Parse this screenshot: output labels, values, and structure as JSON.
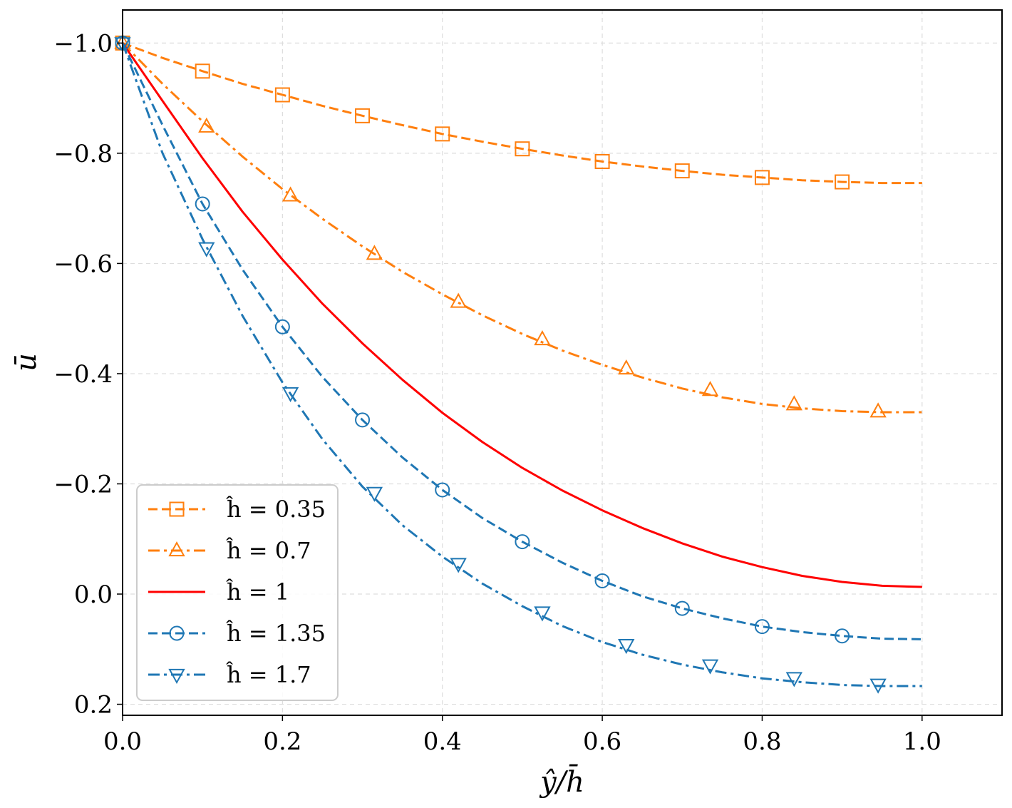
{
  "chart_data": {
    "type": "line",
    "title": "",
    "xlabel": "ŷ/h̄",
    "ylabel": "ū",
    "xlim": [
      0.0,
      1.1
    ],
    "ylim": [
      0.22,
      -1.06
    ],
    "y_inverted": true,
    "grid": true,
    "legend_position": "lower-left",
    "xticks": [
      0.0,
      0.2,
      0.4,
      0.6,
      0.8,
      1.0
    ],
    "xtick_labels": [
      "0.0",
      "0.2",
      "0.4",
      "0.6",
      "0.8",
      "1.0"
    ],
    "yticks": [
      -1.0,
      -0.8,
      -0.6,
      -0.4,
      -0.2,
      0.0,
      0.2
    ],
    "ytick_labels": [
      "−1.0",
      "−0.8",
      "−0.6",
      "−0.4",
      "−0.2",
      "0.0",
      "0.2"
    ],
    "series": [
      {
        "name": "ĥ = 0.35",
        "color": "#ff7f0e",
        "line_style": "dashed",
        "marker": "square",
        "x": [
          0.0,
          0.05,
          0.1,
          0.15,
          0.2,
          0.25,
          0.3,
          0.35,
          0.4,
          0.45,
          0.5,
          0.55,
          0.6,
          0.65,
          0.7,
          0.75,
          0.8,
          0.85,
          0.9,
          0.95,
          1.0
        ],
        "y": [
          -1.0,
          -0.973,
          -0.949,
          -0.926,
          -0.906,
          -0.886,
          -0.868,
          -0.851,
          -0.835,
          -0.821,
          -0.808,
          -0.796,
          -0.785,
          -0.776,
          -0.768,
          -0.761,
          -0.756,
          -0.751,
          -0.748,
          -0.746,
          -0.746
        ],
        "marker_x": [
          0.0,
          0.1,
          0.2,
          0.3,
          0.4,
          0.5,
          0.6,
          0.7,
          0.8,
          0.9
        ],
        "marker_y": [
          -1.0,
          -0.949,
          -0.906,
          -0.868,
          -0.835,
          -0.808,
          -0.785,
          -0.768,
          -0.756,
          -0.748
        ]
      },
      {
        "name": "ĥ = 0.7",
        "color": "#ff7f0e",
        "line_style": "dashdot",
        "marker": "triangle-up",
        "x": [
          0.0,
          0.05,
          0.1,
          0.15,
          0.2,
          0.25,
          0.3,
          0.35,
          0.4,
          0.45,
          0.5,
          0.55,
          0.6,
          0.65,
          0.7,
          0.75,
          0.8,
          0.85,
          0.9,
          0.95,
          1.0
        ],
        "y": [
          -1.0,
          -0.926,
          -0.858,
          -0.794,
          -0.735,
          -0.681,
          -0.631,
          -0.585,
          -0.544,
          -0.506,
          -0.472,
          -0.442,
          -0.416,
          -0.393,
          -0.373,
          -0.357,
          -0.345,
          -0.337,
          -0.332,
          -0.33,
          -0.33
        ],
        "marker_x": [
          0.0,
          0.105,
          0.21,
          0.315,
          0.42,
          0.525,
          0.63,
          0.735,
          0.84,
          0.945
        ],
        "marker_y": [
          -1.0,
          -0.848,
          -0.723,
          -0.617,
          -0.53,
          -0.462,
          -0.409,
          -0.37,
          -0.344,
          -0.331
        ]
      },
      {
        "name": "ĥ = 1",
        "color": "#ff0000",
        "line_style": "solid",
        "marker": "none",
        "x": [
          0.0,
          0.05,
          0.1,
          0.15,
          0.2,
          0.25,
          0.3,
          0.35,
          0.4,
          0.45,
          0.5,
          0.55,
          0.6,
          0.65,
          0.7,
          0.75,
          0.8,
          0.85,
          0.9,
          0.95,
          1.0
        ],
        "y": [
          -1.0,
          -0.895,
          -0.791,
          -0.694,
          -0.607,
          -0.527,
          -0.455,
          -0.389,
          -0.329,
          -0.276,
          -0.229,
          -0.188,
          -0.152,
          -0.12,
          -0.092,
          -0.068,
          -0.049,
          -0.033,
          -0.022,
          -0.015,
          -0.013
        ]
      },
      {
        "name": "ĥ = 1.35",
        "color": "#1f77b4",
        "line_style": "dashed",
        "marker": "circle",
        "x": [
          0.0,
          0.05,
          0.1,
          0.15,
          0.2,
          0.25,
          0.3,
          0.35,
          0.4,
          0.45,
          0.5,
          0.55,
          0.6,
          0.65,
          0.7,
          0.75,
          0.8,
          0.85,
          0.9,
          0.95,
          1.0
        ],
        "y": [
          -1.0,
          -0.851,
          -0.708,
          -0.589,
          -0.485,
          -0.394,
          -0.316,
          -0.248,
          -0.189,
          -0.138,
          -0.095,
          -0.057,
          -0.024,
          0.004,
          0.026,
          0.044,
          0.059,
          0.069,
          0.076,
          0.081,
          0.082
        ],
        "marker_x": [
          0.0,
          0.1,
          0.2,
          0.3,
          0.4,
          0.5,
          0.6,
          0.7,
          0.8,
          0.9
        ],
        "marker_y": [
          -1.0,
          -0.708,
          -0.485,
          -0.316,
          -0.189,
          -0.095,
          -0.024,
          0.026,
          0.059,
          0.076
        ]
      },
      {
        "name": "ĥ = 1.7",
        "color": "#1f77b4",
        "line_style": "dashdot",
        "marker": "triangle-down",
        "x": [
          0.0,
          0.05,
          0.1,
          0.15,
          0.2,
          0.25,
          0.3,
          0.35,
          0.4,
          0.45,
          0.5,
          0.55,
          0.6,
          0.65,
          0.7,
          0.75,
          0.8,
          0.85,
          0.9,
          0.95,
          1.0
        ],
        "y": [
          -1.0,
          -0.8,
          -0.644,
          -0.505,
          -0.384,
          -0.281,
          -0.195,
          -0.125,
          -0.068,
          -0.019,
          0.022,
          0.058,
          0.087,
          0.11,
          0.128,
          0.142,
          0.153,
          0.16,
          0.165,
          0.167,
          0.167
        ],
        "marker_x": [
          0.0,
          0.105,
          0.21,
          0.315,
          0.42,
          0.525,
          0.63,
          0.735,
          0.84,
          0.945
        ],
        "marker_y": [
          -1.0,
          -0.628,
          -0.365,
          -0.184,
          -0.055,
          0.033,
          0.092,
          0.129,
          0.152,
          0.164
        ]
      }
    ]
  }
}
